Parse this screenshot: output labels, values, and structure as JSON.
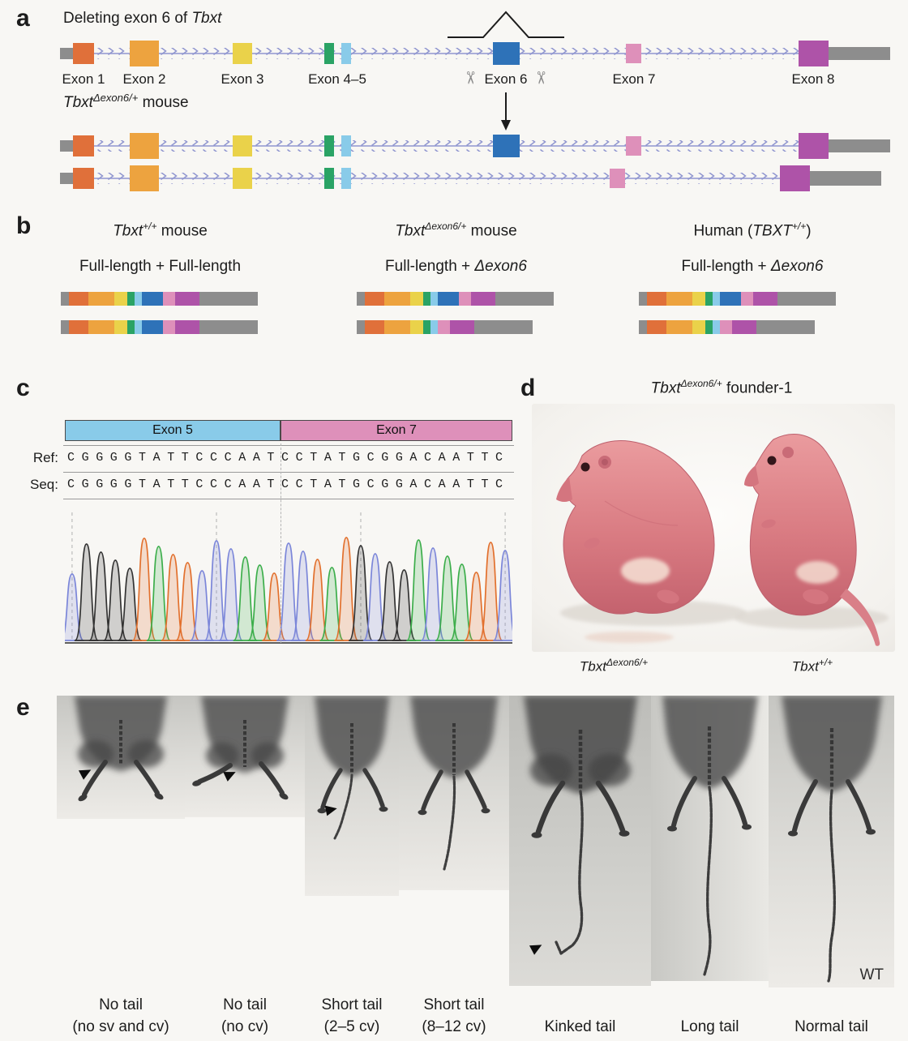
{
  "colors": {
    "exon1": "#e0703a",
    "exon2": "#eda33f",
    "exon3": "#ead24a",
    "exon4": "#2aa365",
    "exon5": "#89cbe9",
    "exon6": "#2e72b8",
    "exon7": "#de90ba",
    "exon8": "#ae53a8",
    "utr": "#8d8d8d",
    "intron": "#9096d0",
    "baseA": "#3cae4b",
    "baseC": "#7b86d9",
    "baseG": "#333333",
    "baseT": "#e2702d"
  },
  "icons": {
    "scissors": "✂"
  },
  "panel_a": {
    "label": "a",
    "title_prefix": "Deleting exon 6 of ",
    "title_gene": "Tbxt",
    "exons": [
      "Exon 1",
      "Exon 2",
      "Exon 3",
      "Exon 4–5",
      "Exon 6",
      "Exon 7",
      "Exon 8"
    ],
    "allele_gene": "Tbxt",
    "allele_sup": "Δexon6/+",
    "allele_suffix": " mouse"
  },
  "panel_b": {
    "label": "b",
    "columns": [
      {
        "prefix": "",
        "gene": "Tbxt",
        "sup": "+/+",
        "suffix": " mouse",
        "subtitle_plain": "Full-length + Full-length",
        "subtitle_italic": "",
        "isoforms": [
          "full",
          "full"
        ]
      },
      {
        "prefix": "",
        "gene": "Tbxt",
        "sup": "Δexon6/+",
        "suffix": " mouse",
        "subtitle_plain": "Full-length + ",
        "subtitle_italic": "Δexon6",
        "isoforms": [
          "full",
          "dexon6"
        ]
      },
      {
        "prefix": "Human (",
        "gene": "TBXT",
        "sup": "+/+",
        "suffix": ")",
        "subtitle_plain": "Full-length + ",
        "subtitle_italic": "Δexon6",
        "isoforms": [
          "full",
          "dexon6"
        ]
      }
    ]
  },
  "panel_c": {
    "label": "c",
    "exon5": "Exon 5",
    "exon7": "Exon 7",
    "ref_label": "Ref:",
    "seq_label": "Seq:",
    "ref_sequence": "CGGGGTATTCCCAATCCTATGCGGACAATTC",
    "seq_sequence": "CGGGGTATTCCCAATCCTATGCGGACAATTC"
  },
  "panel_d": {
    "label": "d",
    "title_gene": "Tbxt",
    "title_sup": "Δexon6/+",
    "title_suffix": " founder-1",
    "left_gene": "Tbxt",
    "left_sup": "Δexon6/+",
    "right_gene": "Tbxt",
    "right_sup": "+/+"
  },
  "panel_e": {
    "label": "e",
    "phenotypes": [
      {
        "line1": "No tail",
        "line2": "(no sv and cv)"
      },
      {
        "line1": "No tail",
        "line2": "(no cv)"
      },
      {
        "line1": "Short tail",
        "line2": "(2–5 cv)"
      },
      {
        "line1": "Short tail",
        "line2": "(8–12 cv)"
      },
      {
        "line1": "Kinked tail",
        "line2": ""
      },
      {
        "line1": "Long tail",
        "line2": ""
      },
      {
        "line1": "Normal tail",
        "line2": ""
      }
    ],
    "wt": "WT"
  }
}
